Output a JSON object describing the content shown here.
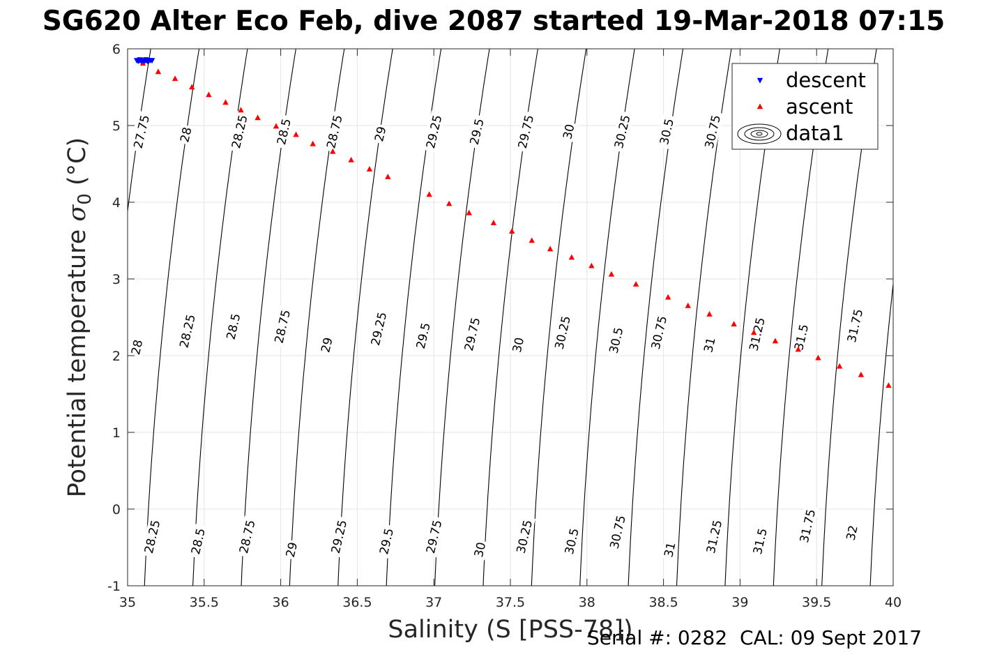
{
  "title": "SG620 Alter Eco Feb, dive 2087 started 19-Mar-2018 07:15",
  "footer": "Serial #: 0282  CAL: 09 Sept 2017",
  "chart_data": {
    "type": "scatter",
    "xlabel": "Salinity (S [PSS-78])",
    "ylabel_main": "Potential temperature ",
    "ylabel_sigma": "σ",
    "ylabel_sub": "0",
    "ylabel_unit": " (°C)",
    "xlim": [
      35,
      40
    ],
    "ylim": [
      -1,
      6
    ],
    "xticks": [
      "35",
      "35.5",
      "36",
      "36.5",
      "37",
      "37.5",
      "38",
      "38.5",
      "39",
      "39.5",
      "40"
    ],
    "yticks": [
      "-1",
      "0",
      "1",
      "2",
      "3",
      "4",
      "5",
      "6"
    ],
    "grid": true,
    "legend_position": "top-right",
    "colors": {
      "descent": "#0000ff",
      "ascent": "#ff0000",
      "contour": "#000000",
      "grid": "#e5e5e5"
    },
    "series": [
      {
        "name": "descent",
        "marker": "triangle-down",
        "x": [
          35.06,
          35.07,
          35.08,
          35.09,
          35.1,
          35.11,
          35.12,
          35.13,
          35.14,
          35.15,
          35.16,
          35.08,
          35.12
        ],
        "y": [
          5.85,
          5.84,
          5.85,
          5.84,
          5.85,
          5.84,
          5.85,
          5.84,
          5.85,
          5.85,
          5.85,
          5.86,
          5.86
        ]
      },
      {
        "name": "ascent",
        "marker": "triangle-up",
        "x": [
          35.1,
          35.2,
          35.31,
          35.42,
          35.53,
          35.64,
          35.74,
          35.85,
          35.97,
          36.1,
          36.21,
          36.34,
          36.46,
          36.58,
          36.7,
          36.97,
          37.1,
          37.23,
          37.39,
          37.51,
          37.64,
          37.76,
          37.9,
          38.03,
          38.16,
          38.32,
          38.53,
          38.66,
          38.8,
          38.96,
          39.09,
          39.23,
          39.38,
          39.51,
          39.65,
          39.79,
          39.97
        ],
        "y": [
          5.81,
          5.7,
          5.61,
          5.5,
          5.4,
          5.3,
          5.2,
          5.1,
          4.99,
          4.88,
          4.76,
          4.66,
          4.55,
          4.43,
          4.33,
          4.1,
          3.98,
          3.86,
          3.73,
          3.62,
          3.5,
          3.39,
          3.28,
          3.17,
          3.06,
          2.93,
          2.76,
          2.65,
          2.54,
          2.41,
          2.3,
          2.19,
          2.08,
          1.97,
          1.86,
          1.75,
          1.61
        ]
      },
      {
        "name": "data1",
        "type": "contour",
        "levels": [
          27.75,
          28,
          28.25,
          28.5,
          28.75,
          29,
          29.25,
          29.5,
          29.75,
          30,
          30.25,
          30.5,
          30.75,
          31,
          31.25,
          31.5,
          31.75,
          32
        ],
        "label_rows": [
          {
            "text": [
              "27.75",
              "28",
              "28.25",
              "28.5",
              "28.75",
              "29",
              "29.25",
              "29.5",
              "29.75",
              "30",
              "30.25",
              "30.5",
              "30.75"
            ],
            "x": [
              35.09,
              35.38,
              35.73,
              36.02,
              36.35,
              36.65,
              37.0,
              37.28,
              37.6,
              37.88,
              38.23,
              38.52,
              38.82
            ],
            "y": [
              4.92,
              4.88,
              4.92,
              4.92,
              4.92,
              4.89,
              4.92,
              4.92,
              4.92,
              4.92,
              4.92,
              4.92,
              4.92
            ]
          },
          {
            "text": [
              "28",
              "28.25",
              "28.5",
              "28.75",
              "29",
              "29.25",
              "29.5",
              "29.75",
              "30",
              "30.25",
              "30.5",
              "30.75",
              "31",
              "31.25",
              "31.5",
              "31.75"
            ],
            "x": [
              35.06,
              35.39,
              35.69,
              36.01,
              36.3,
              36.64,
              36.93,
              37.25,
              37.55,
              37.84,
              38.19,
              38.47,
              38.8,
              39.11,
              39.4,
              39.75
            ],
            "y": [
              2.11,
              2.32,
              2.38,
              2.38,
              2.14,
              2.35,
              2.26,
              2.28,
              2.14,
              2.3,
              2.2,
              2.3,
              2.14,
              2.28,
              2.24,
              2.39
            ]
          },
          {
            "text": [
              "28.25",
              "28.5",
              "28.75",
              "29",
              "29.25",
              "29.5",
              "29.75",
              "30",
              "30.25",
              "30.5",
              "30.75",
              "31",
              "31.25",
              "31.5",
              "31.75",
              "32"
            ],
            "x": [
              35.16,
              35.46,
              35.78,
              36.07,
              36.38,
              36.69,
              37.0,
              37.3,
              37.59,
              37.9,
              38.2,
              38.54,
              38.83,
              39.13,
              39.44,
              39.73
            ],
            "y": [
              -0.36,
              -0.42,
              -0.36,
              -0.53,
              -0.36,
              -0.42,
              -0.36,
              -0.53,
              -0.36,
              -0.42,
              -0.3,
              -0.53,
              -0.36,
              -0.42,
              -0.22,
              -0.31
            ]
          }
        ]
      }
    ]
  }
}
